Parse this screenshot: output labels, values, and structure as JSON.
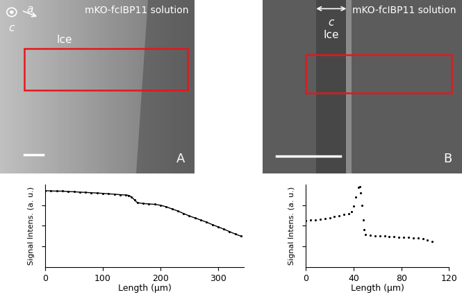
{
  "images": [
    {
      "panel": "A",
      "solution": "mKO-fcIBP11 solution",
      "region": "Ice",
      "axes": [
        "c",
        "a"
      ]
    },
    {
      "panel": "B",
      "solution": "mKO-fcIBP11 solution",
      "region": "Ice",
      "axes": [
        "c"
      ]
    }
  ],
  "chart_data": [
    {
      "type": "line",
      "x_label": "Length (µm)",
      "y_label": "Signal Intens. (a. u.)",
      "x": [
        0,
        10,
        20,
        30,
        40,
        50,
        60,
        70,
        80,
        90,
        100,
        110,
        120,
        130,
        140,
        145,
        150,
        155,
        160,
        170,
        180,
        190,
        200,
        210,
        220,
        230,
        240,
        250,
        260,
        270,
        280,
        290,
        300,
        310,
        320,
        330,
        340
      ],
      "values": [
        3.7,
        3.69,
        3.68,
        3.68,
        3.66,
        3.65,
        3.63,
        3.62,
        3.6,
        3.59,
        3.57,
        3.55,
        3.53,
        3.51,
        3.49,
        3.47,
        3.4,
        3.25,
        3.12,
        3.08,
        3.06,
        3.04,
        3.0,
        2.92,
        2.82,
        2.72,
        2.6,
        2.48,
        2.38,
        2.28,
        2.18,
        2.06,
        1.95,
        1.84,
        1.72,
        1.6,
        1.5
      ],
      "xlim": [
        0,
        345
      ],
      "xticks": [
        0,
        100,
        200,
        300
      ],
      "ylim": [
        0,
        4
      ],
      "yticks": [
        1,
        2,
        3
      ],
      "tick_labels": "x",
      "color": "#000000",
      "marker": "dot"
    },
    {
      "type": "line",
      "x_label": "Length (µm)",
      "y_label": "Signal Intens. (a. u.)",
      "x": [
        0,
        4,
        8,
        12,
        16,
        20,
        24,
        28,
        32,
        36,
        38,
        40,
        42,
        44,
        45,
        46,
        47,
        48,
        49,
        50,
        54,
        58,
        62,
        66,
        70,
        74,
        78,
        82,
        86,
        90,
        94,
        98,
        102,
        106
      ],
      "values": [
        2.25,
        2.28,
        2.3,
        2.33,
        2.36,
        2.4,
        2.44,
        2.48,
        2.55,
        2.6,
        2.7,
        2.95,
        3.4,
        3.85,
        3.9,
        3.6,
        3.0,
        2.3,
        1.8,
        1.58,
        1.55,
        1.52,
        1.5,
        1.5,
        1.48,
        1.47,
        1.46,
        1.45,
        1.45,
        1.42,
        1.4,
        1.38,
        1.32,
        1.25
      ],
      "xlim": [
        0,
        120
      ],
      "xticks": [
        0,
        40,
        80,
        120
      ],
      "ylim": [
        0,
        4
      ],
      "yticks": [
        1,
        2,
        3
      ],
      "tick_labels": "x",
      "color": "#000000",
      "marker": "dot"
    }
  ]
}
